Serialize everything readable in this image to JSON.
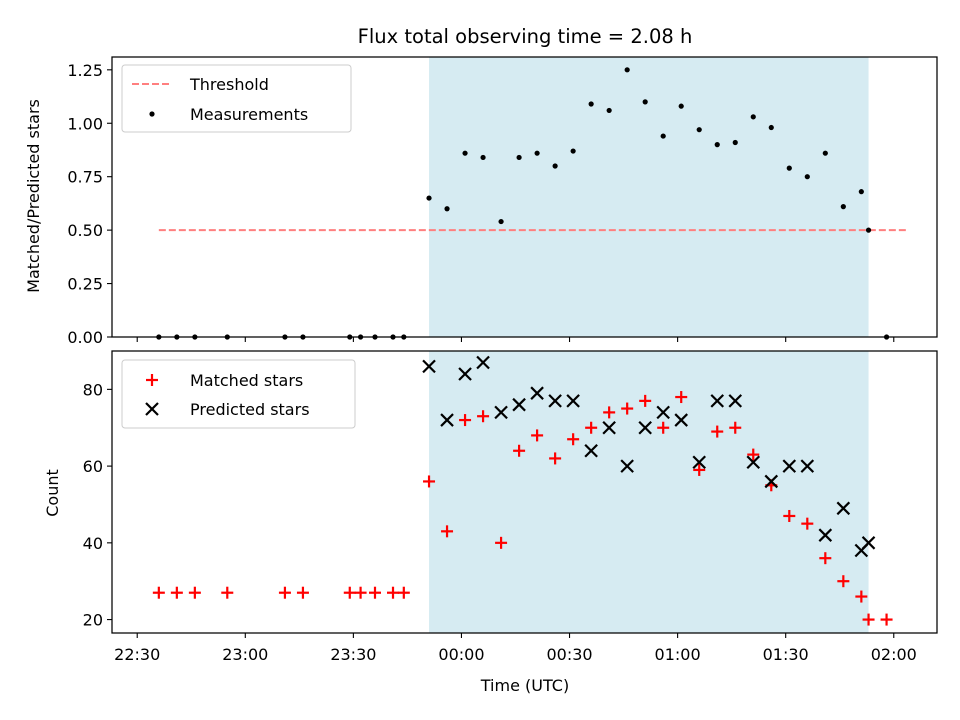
{
  "chart_data": [
    {
      "type": "scatter",
      "title": "Flux total observing time = 2.08 h",
      "ylabel": "Matched/Predicted stars",
      "xlabel": "",
      "xlim": [
        "22:23",
        "02:12"
      ],
      "ylim": [
        0,
        1.31
      ],
      "yticks": [
        "0.00",
        "0.25",
        "0.50",
        "0.75",
        "1.00",
        "1.25"
      ],
      "shaded_interval": {
        "x_start": "23:51",
        "x_end": "01:53",
        "color": "#add8e6"
      },
      "legend_position": "upper left",
      "series": [
        {
          "name": "Threshold",
          "style": "dashed-line",
          "color": "#ff7f7f",
          "x": [
            "22:36",
            "02:04"
          ],
          "y": [
            0.5,
            0.5
          ]
        },
        {
          "name": "Measurements",
          "style": "dot",
          "color": "#000000",
          "x": [
            "22:36",
            "22:41",
            "22:46",
            "22:55",
            "23:11",
            "23:16",
            "23:29",
            "23:32",
            "23:36",
            "23:41",
            "23:44",
            "23:51",
            "23:56",
            "24:01",
            "24:06",
            "24:11",
            "24:16",
            "24:21",
            "24:26",
            "24:31",
            "24:36",
            "24:41",
            "24:46",
            "24:51",
            "24:56",
            "25:01",
            "25:06",
            "25:11",
            "25:16",
            "25:21",
            "25:26",
            "25:31",
            "25:36",
            "25:41",
            "25:46",
            "25:51",
            "25:53",
            "25:58"
          ],
          "y": [
            0,
            0,
            0,
            0,
            0,
            0,
            0,
            0,
            0,
            0,
            0,
            0.65,
            0.6,
            0.86,
            0.84,
            0.54,
            0.84,
            0.86,
            0.8,
            0.87,
            1.09,
            1.06,
            1.25,
            1.1,
            0.94,
            1.08,
            0.97,
            0.9,
            0.91,
            1.03,
            0.98,
            0.79,
            0.75,
            0.86,
            0.61,
            0.68,
            0.5,
            0
          ]
        }
      ]
    },
    {
      "type": "scatter",
      "title": "",
      "ylabel": "Count",
      "xlabel": "Time (UTC)",
      "xlim": [
        "22:23",
        "02:12"
      ],
      "ylim": [
        16.5,
        90
      ],
      "yticks": [
        "20",
        "40",
        "60",
        "80"
      ],
      "xticks": [
        "22:30",
        "23:00",
        "23:30",
        "00:00",
        "00:30",
        "01:00",
        "01:30",
        "02:00"
      ],
      "shaded_interval": {
        "x_start": "23:51",
        "x_end": "01:53",
        "color": "#add8e6"
      },
      "legend_position": "upper left",
      "series": [
        {
          "name": "Matched stars",
          "style": "plus",
          "color": "#ff0000",
          "x": [
            "22:36",
            "22:41",
            "22:46",
            "22:55",
            "23:11",
            "23:16",
            "23:29",
            "23:32",
            "23:36",
            "23:41",
            "23:44",
            "23:51",
            "23:56",
            "24:01",
            "24:06",
            "24:11",
            "24:16",
            "24:21",
            "24:26",
            "24:31",
            "24:36",
            "24:41",
            "24:46",
            "24:51",
            "24:56",
            "25:01",
            "25:06",
            "25:11",
            "25:16",
            "25:21",
            "25:26",
            "25:31",
            "25:36",
            "25:41",
            "25:46",
            "25:51",
            "25:53",
            "25:58"
          ],
          "y": [
            27,
            27,
            27,
            27,
            27,
            27,
            27,
            27,
            27,
            27,
            27,
            56,
            43,
            72,
            73,
            40,
            64,
            68,
            62,
            67,
            70,
            74,
            75,
            77,
            70,
            78,
            59,
            69,
            70,
            63,
            55,
            47,
            45,
            36,
            30,
            26,
            20,
            20
          ]
        },
        {
          "name": "Predicted stars",
          "style": "x",
          "color": "#000000",
          "x": [
            "23:51",
            "23:56",
            "24:01",
            "24:06",
            "24:11",
            "24:16",
            "24:21",
            "24:26",
            "24:31",
            "24:36",
            "24:41",
            "24:46",
            "24:51",
            "24:56",
            "25:01",
            "25:06",
            "25:11",
            "25:16",
            "25:21",
            "25:26",
            "25:31",
            "25:36",
            "25:41",
            "25:46",
            "25:51",
            "25:53"
          ],
          "y": [
            86,
            72,
            84,
            87,
            74,
            76,
            79,
            77,
            77,
            64,
            70,
            60,
            70,
            74,
            72,
            61,
            77,
            77,
            61,
            56,
            60,
            60,
            42,
            49,
            38,
            40
          ]
        }
      ]
    }
  ]
}
